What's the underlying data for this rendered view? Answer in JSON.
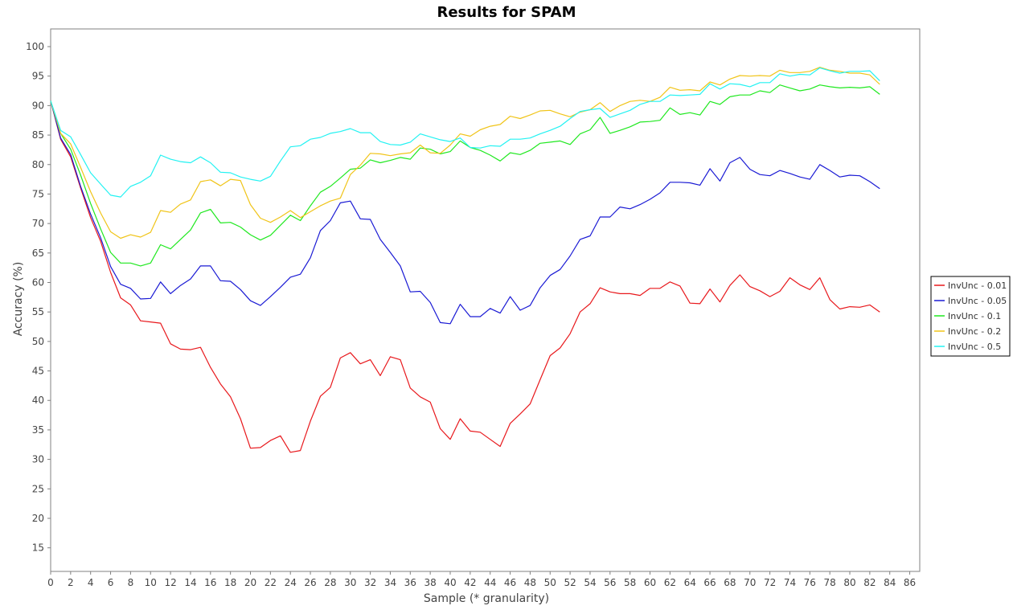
{
  "chart_data": {
    "type": "line",
    "title": "Results for SPAM",
    "xlabel": "Sample (* granularity)",
    "ylabel": "Accuracy (%)",
    "xlim": [
      0,
      87
    ],
    "ylim": [
      11,
      103
    ],
    "xticks": [
      0,
      2,
      4,
      6,
      8,
      10,
      12,
      14,
      16,
      18,
      20,
      22,
      24,
      26,
      28,
      30,
      32,
      34,
      36,
      38,
      40,
      42,
      44,
      46,
      48,
      50,
      52,
      54,
      56,
      58,
      60,
      62,
      64,
      66,
      68,
      70,
      72,
      74,
      76,
      78,
      80,
      82,
      84,
      86
    ],
    "yticks": [
      15,
      20,
      25,
      30,
      35,
      40,
      45,
      50,
      55,
      60,
      65,
      70,
      75,
      80,
      85,
      90,
      95,
      100
    ],
    "grid": false,
    "legend_position": "right",
    "x": [
      0,
      1,
      2,
      3,
      4,
      5,
      6,
      7,
      8,
      9,
      10,
      11,
      12,
      13,
      14,
      15,
      16,
      17,
      18,
      19,
      20,
      21,
      22,
      23,
      24,
      25,
      26,
      27,
      28,
      29,
      30,
      31,
      32,
      33,
      34,
      35,
      36,
      37,
      38,
      39,
      40,
      41,
      42,
      43,
      44,
      45,
      46,
      47,
      48,
      49,
      50,
      51,
      52,
      53,
      54,
      55,
      56,
      57,
      58,
      59,
      60,
      61,
      62,
      63,
      64,
      65,
      66,
      67,
      68,
      69,
      70,
      71,
      72,
      73,
      74,
      75,
      76,
      77,
      78,
      79,
      80,
      81,
      82,
      83
    ],
    "series": [
      {
        "name": "InvUnc - 0.01",
        "color": "#e8181c",
        "values": [
          90.8,
          84.3,
          81.3,
          76.0,
          71.0,
          67.0,
          61.7,
          57.4,
          56.2,
          53.5,
          53.3,
          53.1,
          49.6,
          48.7,
          48.6,
          49.0,
          45.6,
          42.8,
          40.6,
          36.9,
          31.9,
          32.0,
          33.2,
          34.0,
          31.2,
          31.5,
          36.5,
          40.7,
          42.2,
          47.2,
          48.1,
          46.2,
          46.9,
          44.2,
          47.4,
          46.9,
          42.1,
          40.6,
          39.7,
          35.2,
          33.4,
          36.9,
          34.8,
          34.6,
          33.4,
          32.2,
          36.1,
          37.7,
          39.4,
          43.5,
          47.6,
          48.9,
          51.3,
          55.0,
          56.4,
          59.1,
          58.4,
          58.1,
          58.1,
          57.8,
          59.0,
          59.0,
          60.1,
          59.4,
          56.5,
          56.4,
          58.9,
          56.7,
          59.5,
          61.3,
          59.3,
          58.6,
          57.6,
          58.5,
          60.8,
          59.6,
          58.8,
          60.8,
          57.1,
          55.5,
          55.9,
          55.8,
          56.2,
          55.0
        ]
      },
      {
        "name": "InvUnc - 0.05",
        "color": "#1a1ad4",
        "values": [
          90.8,
          84.5,
          81.7,
          76.3,
          71.6,
          67.6,
          62.7,
          59.7,
          59.0,
          57.2,
          57.3,
          60.1,
          58.1,
          59.5,
          60.6,
          62.8,
          62.8,
          60.3,
          60.2,
          58.8,
          56.9,
          56.1,
          57.6,
          59.2,
          60.9,
          61.4,
          64.2,
          68.8,
          70.5,
          73.5,
          73.8,
          70.8,
          70.7,
          67.3,
          65.1,
          62.8,
          58.4,
          58.5,
          56.6,
          53.2,
          53.0,
          56.3,
          54.2,
          54.2,
          55.6,
          54.8,
          57.6,
          55.3,
          56.1,
          59.1,
          61.2,
          62.2,
          64.5,
          67.3,
          67.9,
          71.1,
          71.1,
          72.8,
          72.5,
          73.2,
          74.1,
          75.2,
          77.0,
          77.0,
          76.9,
          76.5,
          79.3,
          77.2,
          80.3,
          81.2,
          79.2,
          78.3,
          78.1,
          79.0,
          78.5,
          77.9,
          77.5,
          80.0,
          79.0,
          77.9,
          78.2,
          78.1,
          77.1,
          75.9
        ]
      },
      {
        "name": "InvUnc - 0.1",
        "color": "#1fe81f",
        "values": [
          90.8,
          85.3,
          82.6,
          78.2,
          73.4,
          69.1,
          65.1,
          63.3,
          63.3,
          62.8,
          63.3,
          66.4,
          65.7,
          67.3,
          68.9,
          71.8,
          72.4,
          70.1,
          70.2,
          69.4,
          68.1,
          67.2,
          68.0,
          69.7,
          71.4,
          70.5,
          73.0,
          75.3,
          76.3,
          77.7,
          79.2,
          79.4,
          80.8,
          80.3,
          80.7,
          81.2,
          80.9,
          82.8,
          82.6,
          81.8,
          82.2,
          84.0,
          82.9,
          82.4,
          81.6,
          80.6,
          82.0,
          81.7,
          82.4,
          83.6,
          83.8,
          84.0,
          83.4,
          85.2,
          85.9,
          88.0,
          85.3,
          85.8,
          86.4,
          87.2,
          87.3,
          87.5,
          89.6,
          88.5,
          88.8,
          88.4,
          90.7,
          90.2,
          91.5,
          91.8,
          91.8,
          92.5,
          92.2,
          93.5,
          93.0,
          92.5,
          92.8,
          93.5,
          93.2,
          93.0,
          93.1,
          93.0,
          93.2,
          91.9
        ]
      },
      {
        "name": "InvUnc - 0.2",
        "color": "#f0c418",
        "values": [
          90.8,
          85.3,
          83.5,
          79.5,
          75.4,
          71.8,
          68.6,
          67.5,
          68.1,
          67.7,
          68.5,
          72.2,
          71.9,
          73.3,
          74.0,
          77.1,
          77.4,
          76.4,
          77.5,
          77.3,
          73.2,
          70.9,
          70.2,
          71.1,
          72.2,
          71.0,
          72.0,
          73.0,
          73.8,
          74.3,
          78.3,
          79.9,
          81.9,
          81.8,
          81.5,
          81.8,
          82.0,
          83.3,
          82.0,
          81.9,
          83.3,
          85.2,
          84.8,
          85.9,
          86.5,
          86.8,
          88.2,
          87.8,
          88.4,
          89.1,
          89.2,
          88.6,
          88.1,
          88.9,
          89.3,
          90.5,
          89.0,
          90.0,
          90.7,
          90.9,
          90.7,
          91.4,
          93.1,
          92.6,
          92.7,
          92.5,
          94.0,
          93.5,
          94.5,
          95.1,
          95.0,
          95.1,
          95.0,
          96.0,
          95.6,
          95.6,
          95.8,
          96.5,
          96.0,
          95.8,
          95.5,
          95.5,
          95.2,
          93.6
        ]
      },
      {
        "name": "InvUnc - 0.5",
        "color": "#22f2f2",
        "values": [
          90.8,
          85.8,
          84.7,
          81.7,
          78.6,
          76.7,
          74.8,
          74.5,
          76.3,
          77.0,
          78.1,
          81.6,
          80.9,
          80.5,
          80.3,
          81.3,
          80.3,
          78.7,
          78.6,
          77.9,
          77.5,
          77.2,
          78.0,
          80.6,
          83.0,
          83.2,
          84.3,
          84.6,
          85.3,
          85.6,
          86.1,
          85.4,
          85.4,
          83.9,
          83.4,
          83.3,
          83.8,
          85.2,
          84.7,
          84.2,
          83.9,
          84.5,
          82.9,
          82.8,
          83.2,
          83.1,
          84.3,
          84.3,
          84.5,
          85.2,
          85.8,
          86.5,
          87.8,
          89.0,
          89.3,
          89.5,
          88.0,
          88.6,
          89.2,
          90.2,
          90.7,
          90.7,
          91.8,
          91.7,
          91.8,
          91.9,
          93.7,
          92.8,
          93.7,
          93.6,
          93.2,
          93.9,
          93.9,
          95.4,
          95.0,
          95.3,
          95.2,
          96.4,
          95.9,
          95.5,
          95.8,
          95.8,
          95.9,
          94.2
        ]
      }
    ]
  }
}
